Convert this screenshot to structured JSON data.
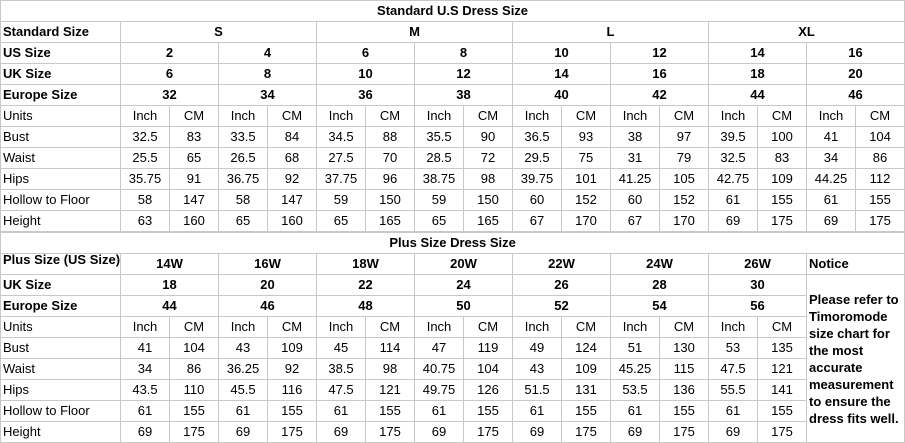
{
  "standard": {
    "title": "Standard U.S Dress Size",
    "header_label": "Standard Size",
    "sizes": [
      "S",
      "M",
      "L",
      "XL"
    ],
    "rows": [
      {
        "label": "US Size",
        "values": [
          2,
          4,
          6,
          8,
          10,
          12,
          14,
          16
        ]
      },
      {
        "label": "UK Size",
        "values": [
          6,
          8,
          10,
          12,
          14,
          16,
          18,
          20
        ]
      },
      {
        "label": "Europe Size",
        "values": [
          32,
          34,
          36,
          38,
          40,
          42,
          44,
          46
        ]
      }
    ],
    "units_label": "Units",
    "units": [
      "Inch",
      "CM"
    ],
    "measurements": [
      {
        "label": "Bust",
        "values": [
          32.5,
          83,
          33.5,
          84,
          34.5,
          88,
          35.5,
          90,
          36.5,
          93,
          38,
          97,
          39.5,
          100,
          41,
          104
        ]
      },
      {
        "label": "Waist",
        "values": [
          25.5,
          65,
          26.5,
          68,
          27.5,
          70,
          28.5,
          72,
          29.5,
          75,
          31,
          79,
          32.5,
          83,
          34,
          86
        ]
      },
      {
        "label": "Hips",
        "values": [
          35.75,
          91,
          36.75,
          92,
          37.75,
          96,
          38.75,
          98,
          39.75,
          101,
          41.25,
          105,
          42.75,
          109,
          44.25,
          112
        ]
      },
      {
        "label": "Hollow to Floor",
        "values": [
          58,
          147,
          58,
          147,
          59,
          150,
          59,
          150,
          60,
          152,
          60,
          152,
          61,
          155,
          61,
          155
        ]
      },
      {
        "label": "Height",
        "values": [
          63,
          160,
          65,
          160,
          65,
          165,
          65,
          165,
          67,
          170,
          67,
          170,
          69,
          175,
          69,
          175
        ]
      }
    ]
  },
  "plus": {
    "title": "Plus Size Dress Size",
    "rows": [
      {
        "label": "Plus Size (US Size)",
        "values": [
          "14W",
          "16W",
          "18W",
          "20W",
          "22W",
          "24W",
          "26W"
        ]
      },
      {
        "label": "UK Size",
        "values": [
          18,
          20,
          22,
          24,
          26,
          28,
          30
        ]
      },
      {
        "label": "Europe Size",
        "values": [
          44,
          46,
          48,
          50,
          52,
          54,
          56
        ]
      }
    ],
    "units_label": "Units",
    "units": [
      "Inch",
      "CM"
    ],
    "measurements": [
      {
        "label": "Bust",
        "values": [
          41,
          104,
          43,
          109,
          45,
          114,
          47,
          119,
          49,
          124,
          51,
          130,
          53,
          135
        ]
      },
      {
        "label": "Waist",
        "values": [
          34,
          86,
          36.25,
          92,
          38.5,
          98,
          40.75,
          104,
          43,
          109,
          45.25,
          115,
          47.5,
          121
        ]
      },
      {
        "label": "Hips",
        "values": [
          43.5,
          110,
          45.5,
          116,
          47.5,
          121,
          49.75,
          126,
          51.5,
          131,
          53.5,
          136,
          55.5,
          141
        ]
      },
      {
        "label": "Hollow to Floor",
        "values": [
          61,
          155,
          61,
          155,
          61,
          155,
          61,
          155,
          61,
          155,
          61,
          155,
          61,
          155
        ]
      },
      {
        "label": "Height",
        "values": [
          69,
          175,
          69,
          175,
          69,
          175,
          69,
          175,
          69,
          175,
          69,
          175,
          69,
          175
        ]
      }
    ],
    "notice_title": "Notice",
    "notice": "Please refer to Timoromode size chart for the most accurate measurement to ensure the dress fits well."
  }
}
